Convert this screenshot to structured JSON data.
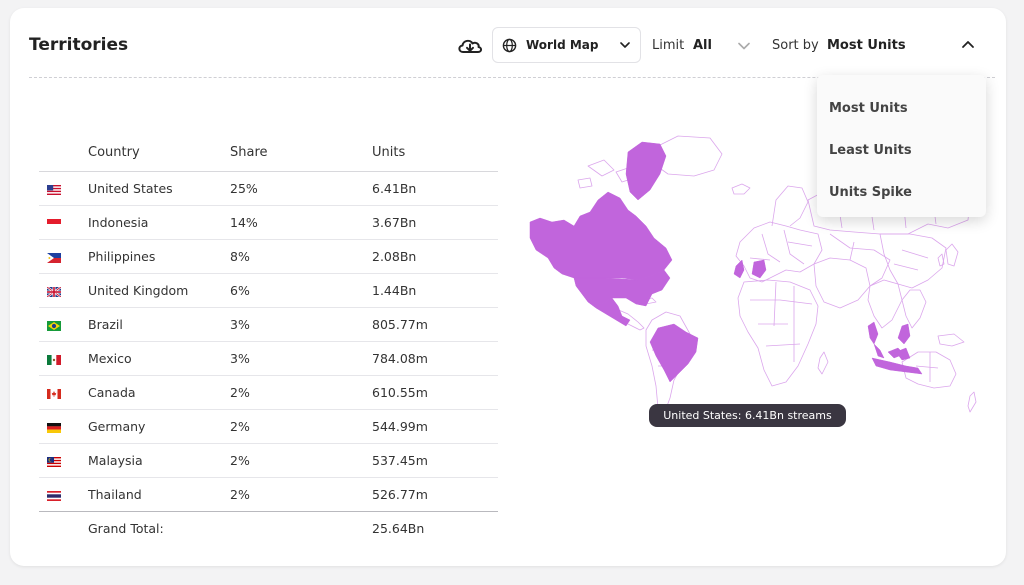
{
  "panel": {
    "title": "Territories"
  },
  "toolbar": {
    "view_label": "World Map",
    "limit_label": "Limit",
    "limit_value": "All",
    "sort_label": "Sort by",
    "sort_value": "Most Units"
  },
  "sort_menu": {
    "options": [
      "Most Units",
      "Least Units",
      "Units Spike"
    ]
  },
  "table": {
    "headers": {
      "country": "Country",
      "share": "Share",
      "units": "Units"
    },
    "rows": [
      {
        "flag": "us-flag-icon",
        "country": "United States",
        "share": "25%",
        "units": "6.41Bn"
      },
      {
        "flag": "id-flag-icon",
        "country": "Indonesia",
        "share": "14%",
        "units": "3.67Bn"
      },
      {
        "flag": "ph-flag-icon",
        "country": "Philippines",
        "share": "8%",
        "units": "2.08Bn"
      },
      {
        "flag": "gb-flag-icon",
        "country": "United Kingdom",
        "share": "6%",
        "units": "1.44Bn"
      },
      {
        "flag": "br-flag-icon",
        "country": "Brazil",
        "share": "3%",
        "units": "805.77m"
      },
      {
        "flag": "mx-flag-icon",
        "country": "Mexico",
        "share": "3%",
        "units": "784.08m"
      },
      {
        "flag": "ca-flag-icon",
        "country": "Canada",
        "share": "2%",
        "units": "610.55m"
      },
      {
        "flag": "de-flag-icon",
        "country": "Germany",
        "share": "2%",
        "units": "544.99m"
      },
      {
        "flag": "my-flag-icon",
        "country": "Malaysia",
        "share": "2%",
        "units": "537.45m"
      },
      {
        "flag": "th-flag-icon",
        "country": "Thailand",
        "share": "2%",
        "units": "526.77m"
      }
    ],
    "total_label": "Grand Total:",
    "total_units": "25.64Bn"
  },
  "map": {
    "tooltip": "United States: 6.41Bn streams",
    "highlight_color": "#c165dc",
    "outline_color": "#d9a4ea"
  }
}
